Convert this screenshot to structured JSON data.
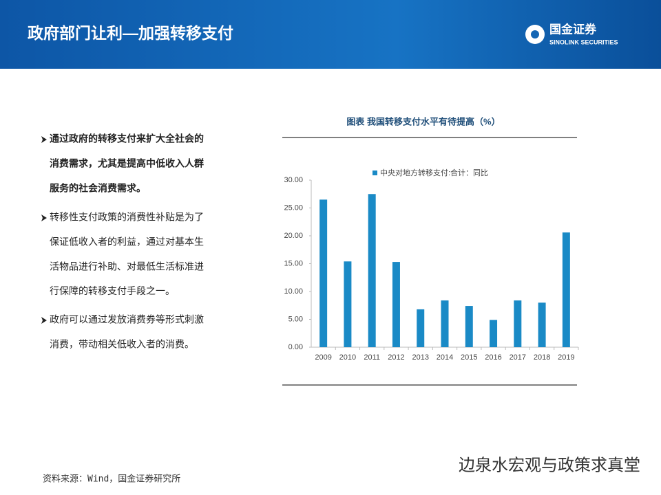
{
  "header": {
    "title": "政府部门让利—加强转移支付",
    "logo_cn": "国金证券",
    "logo_en": "SINOLINK SECURITIES"
  },
  "bullets": [
    {
      "lines": [
        "通过政府的转移支付来扩大全社会的",
        "消费需求，尤其是提高中低收入人群",
        "服务的社会消费需求。"
      ]
    },
    {
      "lines": [
        "转移性支付政策的消费性补贴是为了",
        "保证低收入者的利益，通过对基本生",
        "活物品进行补助、对最低生活标准进",
        "行保障的转移支付手段之一。"
      ]
    },
    {
      "lines": [
        "政府可以通过发放消费券等形式刺激",
        "消费，带动相关低收入者的消费。"
      ]
    }
  ],
  "source": "资料来源：Wind，国金证券研究所",
  "watermark": "边泉水宏观与政策求真堂",
  "chart_data": {
    "type": "bar",
    "title": "图表  我国转移支付水平有待提高（%）",
    "categories": [
      "2009",
      "2010",
      "2011",
      "2012",
      "2013",
      "2014",
      "2015",
      "2016",
      "2017",
      "2018",
      "2019"
    ],
    "series": [
      {
        "name": "中央对地方转移支付:合计：同比",
        "color": "#1a8ac6",
        "values": [
          26.5,
          15.4,
          27.5,
          15.3,
          6.8,
          8.4,
          7.4,
          4.9,
          8.4,
          8.0,
          20.6
        ]
      }
    ],
    "ylim": [
      0,
      30
    ],
    "yticks": [
      {
        "value": 0,
        "label": "0.00"
      },
      {
        "value": 5,
        "label": "5.00"
      },
      {
        "value": 10,
        "label": "10.00"
      },
      {
        "value": 15,
        "label": "15.00"
      },
      {
        "value": 20,
        "label": "20.00"
      },
      {
        "value": 25,
        "label": "25.00"
      },
      {
        "value": 30,
        "label": "30.00"
      }
    ],
    "legend": "top"
  }
}
